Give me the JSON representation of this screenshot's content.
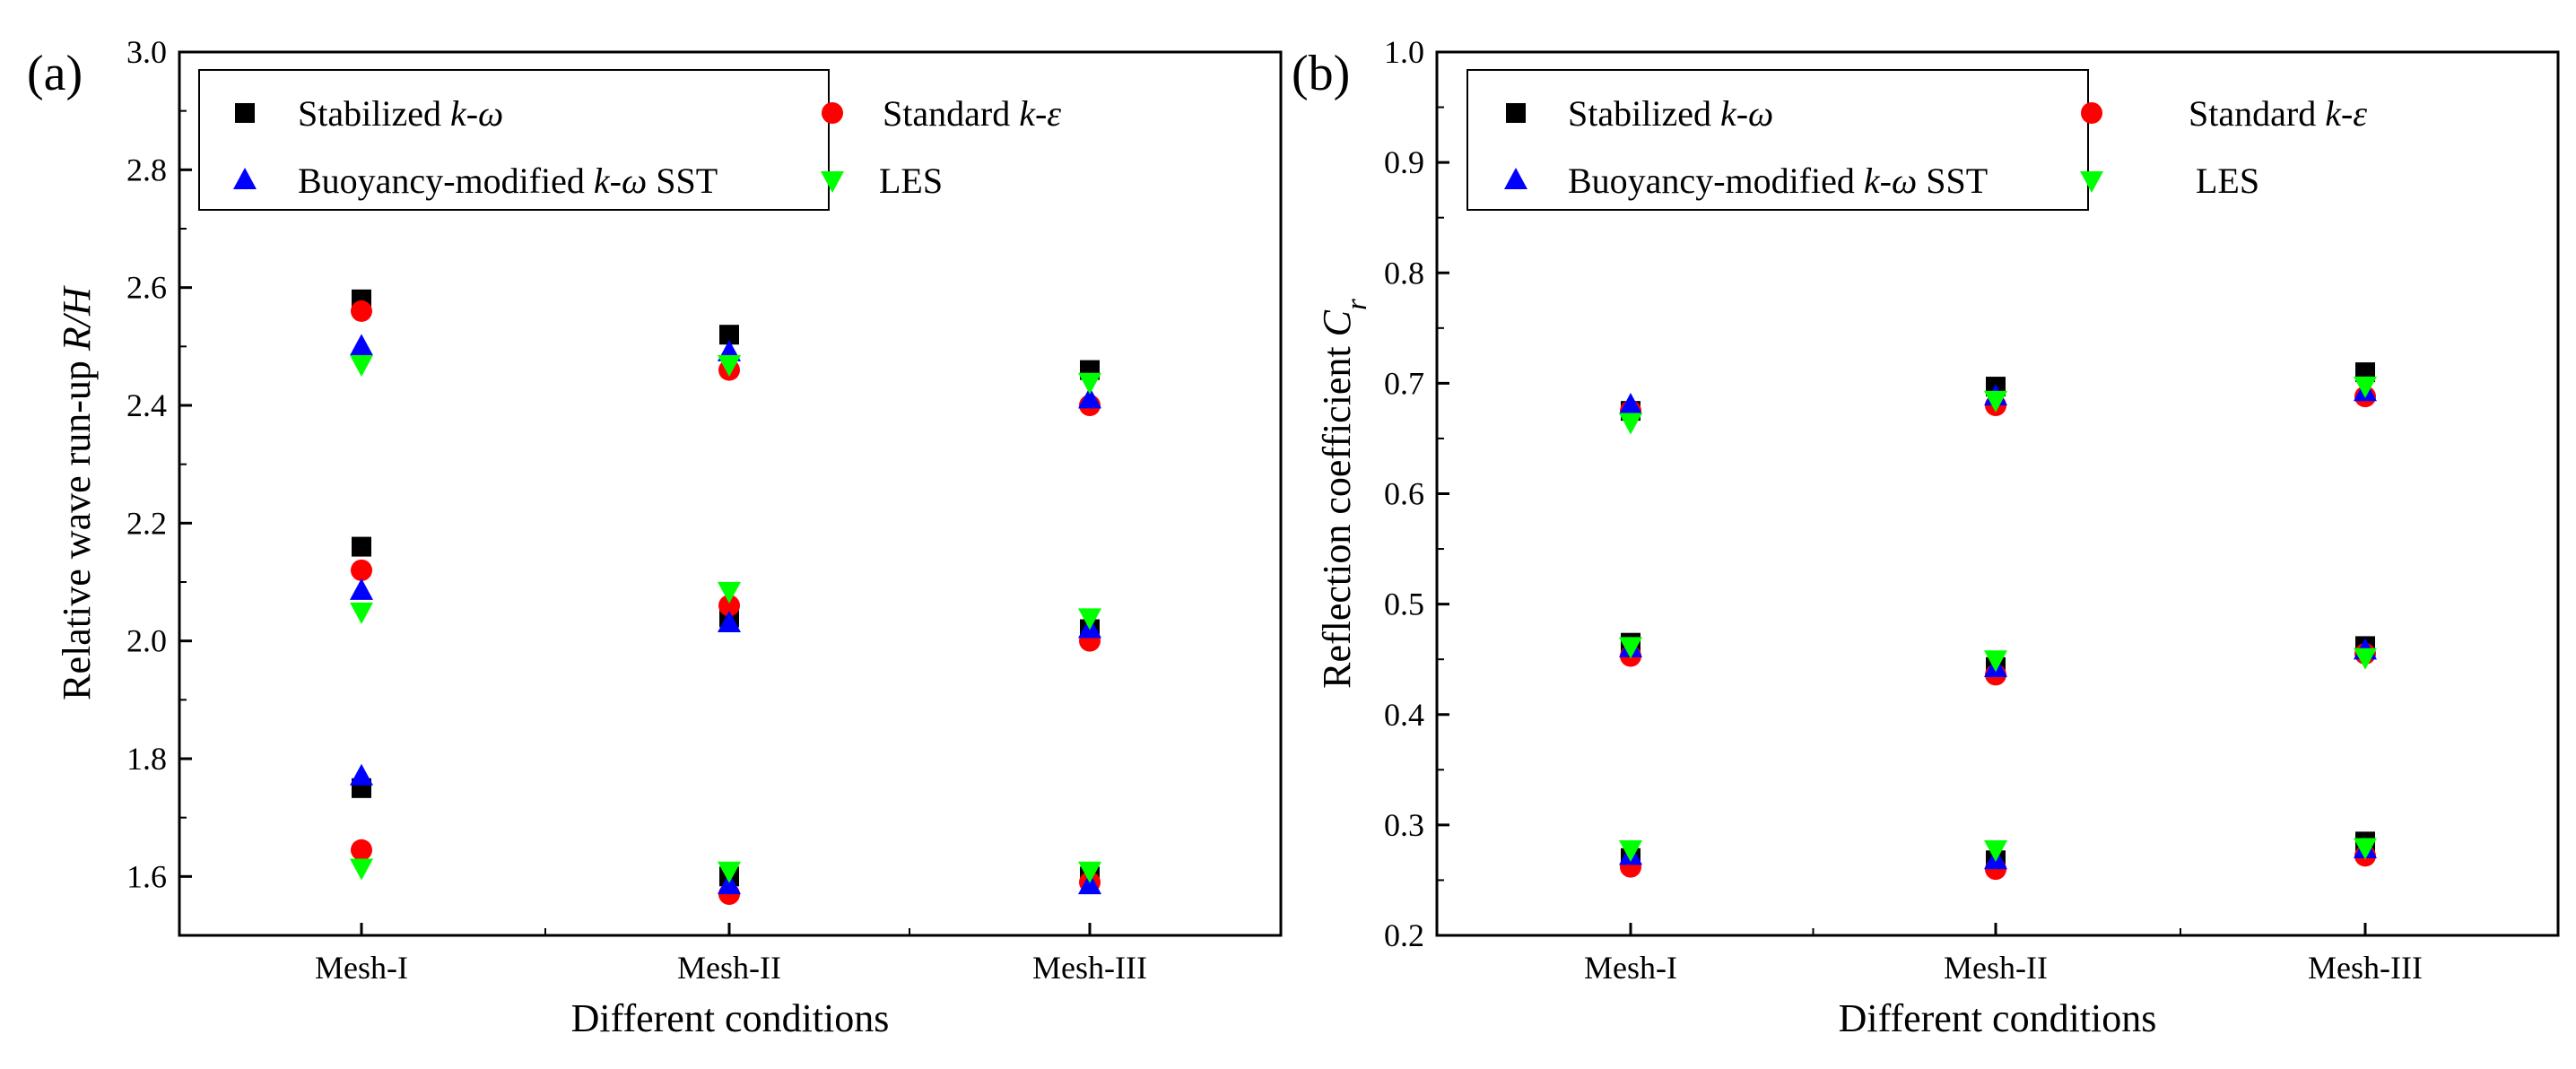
{
  "legend_series": [
    {
      "key": "stab",
      "parts": [
        {
          "t": "Stabilized "
        },
        {
          "t": "k-ω",
          "i": true
        }
      ]
    },
    {
      "key": "std",
      "parts": [
        {
          "t": "Standard "
        },
        {
          "t": "k-ε",
          "i": true
        }
      ]
    },
    {
      "key": "buoy",
      "parts": [
        {
          "t": "Buoyancy-modified  "
        },
        {
          "t": "k-ω",
          "i": true
        },
        {
          "t": " SST"
        }
      ]
    },
    {
      "key": "les",
      "parts": [
        {
          "t": "LES"
        }
      ]
    }
  ],
  "colors": {
    "stab": "#000000",
    "std": "#ff0000",
    "buoy": "#0000ff",
    "les": "#00ff00"
  },
  "markers": {
    "stab": "square",
    "std": "circle",
    "buoy": "triangle-up",
    "les": "triangle-down"
  },
  "chart_data": [
    {
      "type": "scatter",
      "panel": "(a)",
      "xlabel": "Different conditions",
      "ylabel_parts": [
        {
          "t": "Relative wave run-up "
        },
        {
          "t": "R/H",
          "i": true
        }
      ],
      "categories": [
        "Mesh-I",
        "Mesh-II",
        "Mesh-III"
      ],
      "ylim": [
        1.5,
        3.0
      ],
      "yticks": [
        1.6,
        1.8,
        2.0,
        2.2,
        2.4,
        2.6,
        2.8,
        3.0
      ],
      "ytick_labels": [
        "1.6",
        "1.8",
        "2.0",
        "2.2",
        "2.4",
        "2.6",
        "2.8",
        "3.0"
      ],
      "series": [
        {
          "name": "Stabilized k-ω",
          "key": "stab",
          "groups": [
            [
              2.58,
              2.52,
              2.46
            ],
            [
              2.16,
              2.04,
              2.02
            ],
            [
              1.75,
              1.6,
              1.6
            ]
          ]
        },
        {
          "name": "Standard k-ε",
          "key": "std",
          "groups": [
            [
              2.56,
              2.46,
              2.4
            ],
            [
              2.12,
              2.06,
              2.0
            ],
            [
              1.645,
              1.57,
              1.59
            ]
          ]
        },
        {
          "name": "Buoyancy-modified k-ω SST",
          "key": "buoy",
          "groups": [
            [
              2.5,
              2.49,
              2.41
            ],
            [
              2.085,
              2.03,
              2.02
            ],
            [
              1.77,
              1.585,
              1.585
            ]
          ]
        },
        {
          "name": "LES",
          "key": "les",
          "groups": [
            [
              2.47,
              2.47,
              2.44
            ],
            [
              2.05,
              2.085,
              2.04
            ],
            [
              1.615,
              1.61,
              1.61
            ]
          ]
        }
      ]
    },
    {
      "type": "scatter",
      "panel": "(b)",
      "xlabel": "Different conditions",
      "ylabel_parts": [
        {
          "t": "Reflection coefficient "
        },
        {
          "t": "C",
          "i": true
        },
        {
          "t": "r",
          "i": true,
          "sub": true
        }
      ],
      "categories": [
        "Mesh-I",
        "Mesh-II",
        "Mesh-III"
      ],
      "ylim": [
        0.2,
        1.0
      ],
      "yticks": [
        0.2,
        0.3,
        0.4,
        0.5,
        0.6,
        0.7,
        0.8,
        0.9,
        1.0
      ],
      "ytick_labels": [
        "0.2",
        "0.3",
        "0.4",
        "0.5",
        "0.6",
        "0.7",
        "0.8",
        "0.9",
        "1.0"
      ],
      "series": [
        {
          "name": "Stabilized k-ω",
          "key": "stab",
          "groups": [
            [
              0.675,
              0.697,
              0.71
            ],
            [
              0.465,
              0.443,
              0.462
            ],
            [
              0.27,
              0.268,
              0.285
            ]
          ]
        },
        {
          "name": "Standard k-ε",
          "key": "std",
          "groups": [
            [
              0.675,
              0.68,
              0.688
            ],
            [
              0.453,
              0.436,
              0.455
            ],
            [
              0.262,
              0.26,
              0.272
            ]
          ]
        },
        {
          "name": "Buoyancy-modified k-ω SST",
          "key": "buoy",
          "groups": [
            [
              0.68,
              0.688,
              0.692
            ],
            [
              0.46,
              0.442,
              0.458
            ],
            [
              0.272,
              0.268,
              0.278
            ]
          ]
        },
        {
          "name": "LES",
          "key": "les",
          "groups": [
            [
              0.665,
              0.685,
              0.698
            ],
            [
              0.462,
              0.45,
              0.452
            ],
            [
              0.278,
              0.278,
              0.28
            ]
          ]
        }
      ]
    }
  ]
}
